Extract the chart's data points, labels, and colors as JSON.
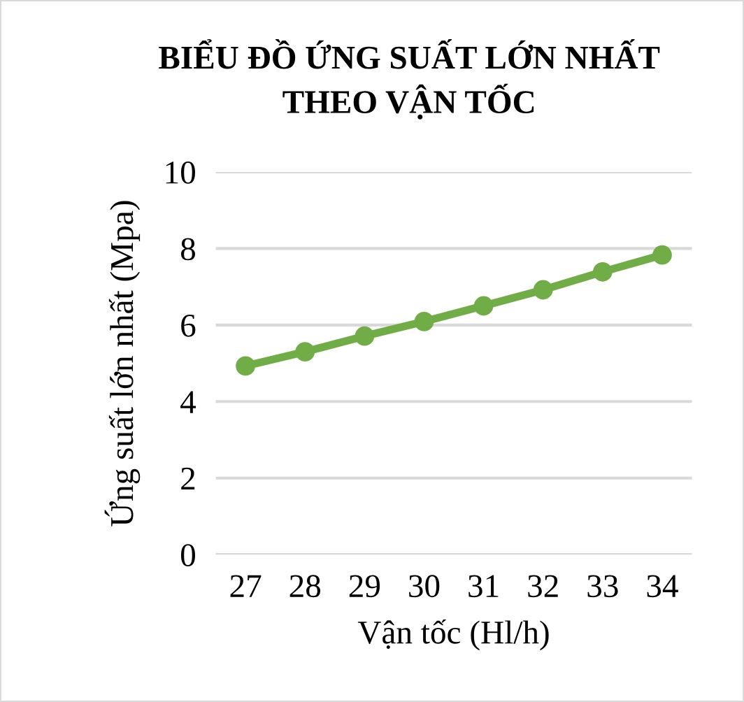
{
  "chart_data": {
    "type": "line",
    "title": "BIỂU ĐỒ ỨNG SUẤT LỚN NHẤT\nTHEO VẬN TỐC",
    "xlabel": "Vận tốc (Hl/h)",
    "ylabel": "Ứng suất lớn nhất (Mpa)",
    "categories": [
      "27",
      "28",
      "29",
      "30",
      "31",
      "32",
      "33",
      "34"
    ],
    "series": [
      {
        "color": "#70ad47",
        "values": [
          4.93,
          5.3,
          5.71,
          6.09,
          6.5,
          6.92,
          7.39,
          7.83
        ]
      }
    ],
    "ylim": [
      0,
      10
    ],
    "yticks": [
      0,
      2,
      4,
      6,
      8,
      10
    ],
    "grid": "y",
    "legend": false,
    "marker": "circle",
    "line_style": "solid"
  }
}
